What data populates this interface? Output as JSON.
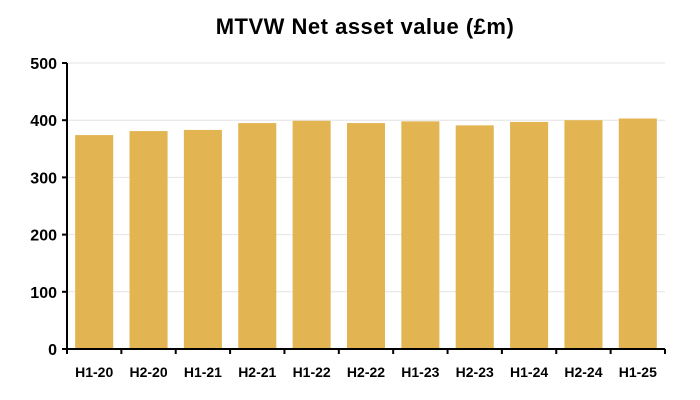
{
  "chart_data": {
    "type": "bar",
    "title": "MTVW Net asset value (£m)",
    "xlabel": "",
    "ylabel": "",
    "categories": [
      "H1-20",
      "H2-20",
      "H1-21",
      "H2-21",
      "H1-22",
      "H2-22",
      "H1-23",
      "H2-23",
      "H1-24",
      "H2-24",
      "H1-25"
    ],
    "values": [
      374,
      381,
      383,
      395,
      399,
      395,
      398,
      391,
      397,
      400,
      403
    ],
    "ylim": [
      0,
      500
    ],
    "yticks": [
      0,
      100,
      200,
      300,
      400,
      500
    ],
    "grid": true,
    "legend": "none",
    "colors": {
      "bar": "#E2B552",
      "grid": "#e4e4e4",
      "axis": "#000000"
    }
  }
}
